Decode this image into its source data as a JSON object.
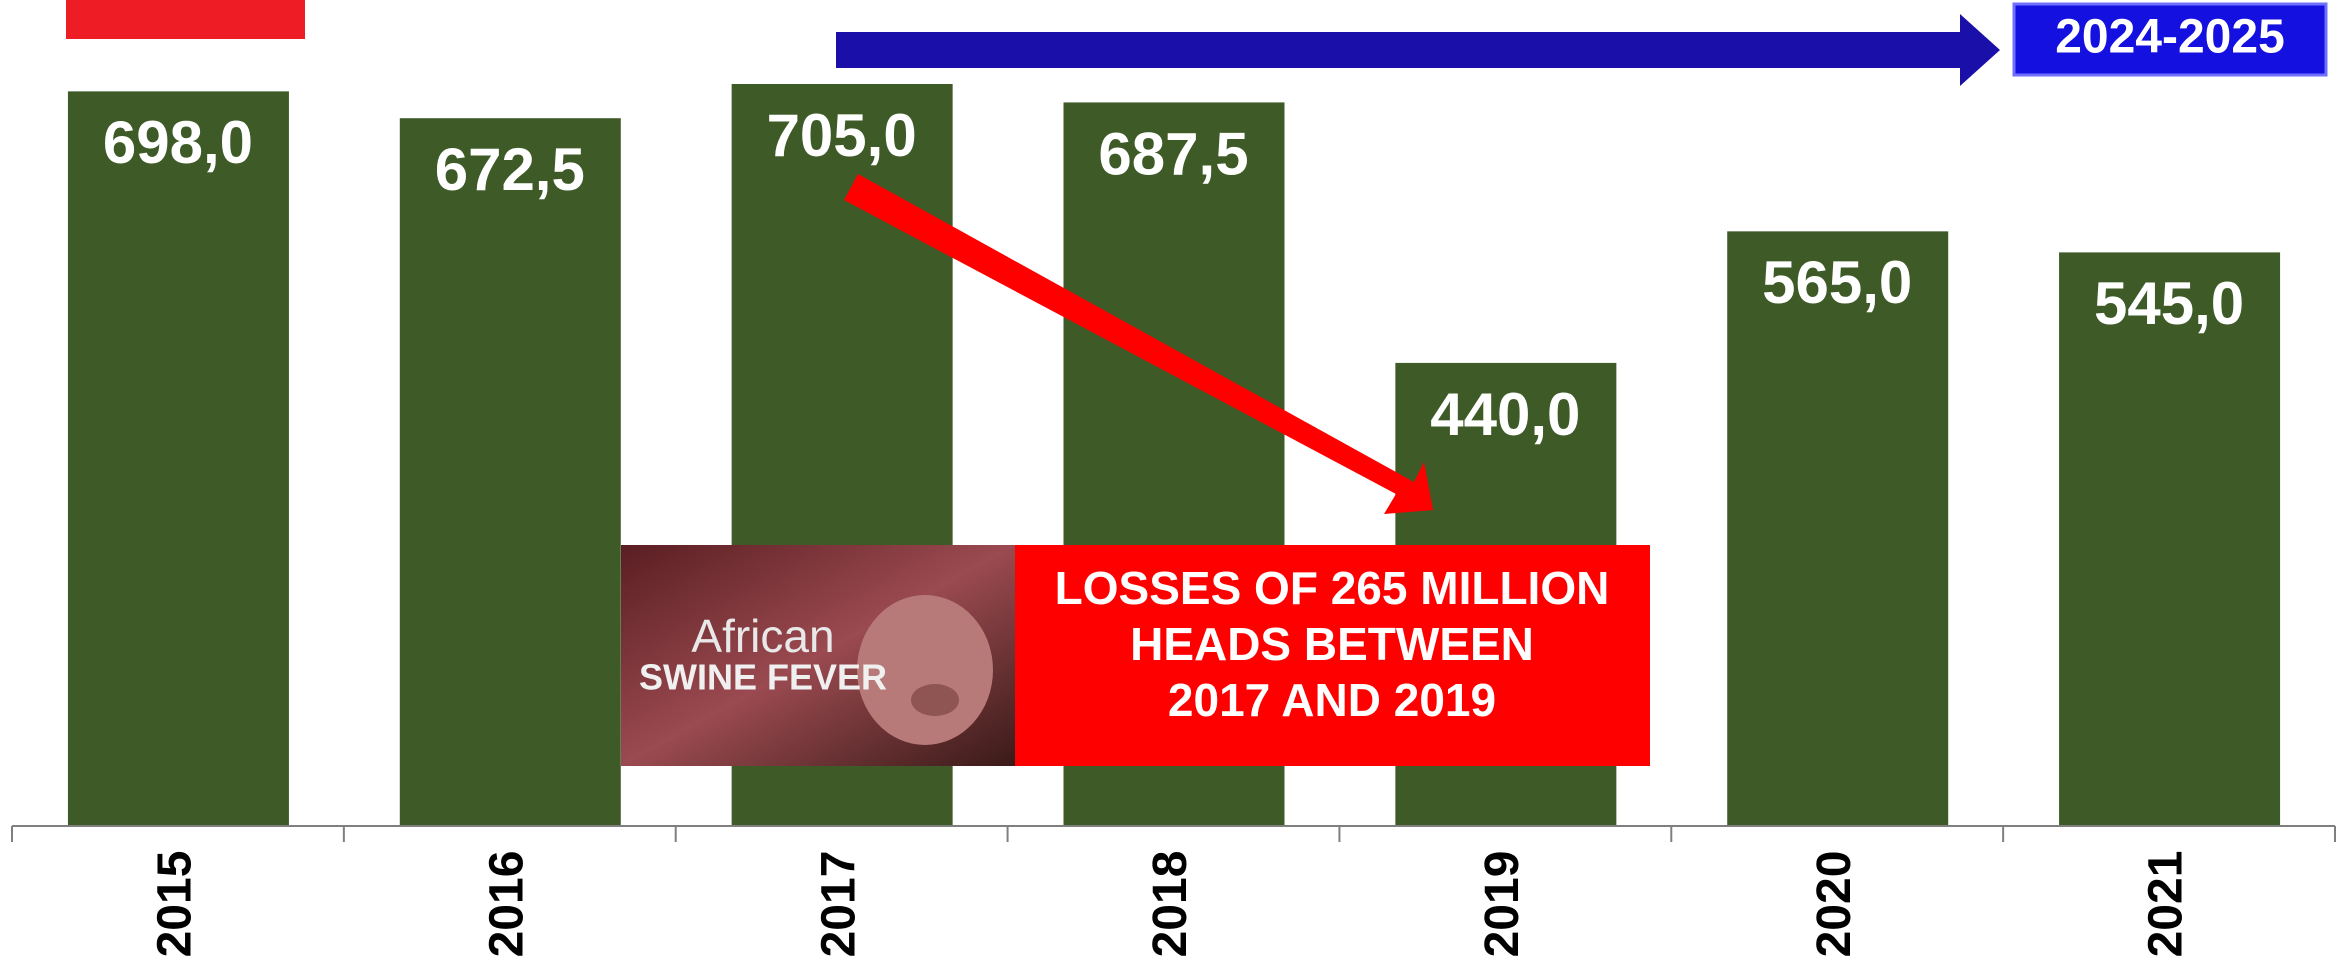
{
  "chart_data": {
    "type": "bar",
    "categories": [
      "2015",
      "2016",
      "2017",
      "2018",
      "2019",
      "2020",
      "2021"
    ],
    "values": [
      698,
      672.5,
      705,
      687.5,
      440,
      565,
      545
    ],
    "value_labels": [
      "698,0",
      "672,5",
      "705,0",
      "687,5",
      "440,0",
      "565,0",
      "545,0"
    ],
    "color": "#3d5a27",
    "annotations": {
      "period": "2024-2025",
      "losses": [
        "LOSSES OF 265 MILLION",
        "HEADS BETWEEN",
        "2017 AND 2019"
      ],
      "image_text": [
        "African",
        "SWINE FEVER"
      ]
    }
  }
}
